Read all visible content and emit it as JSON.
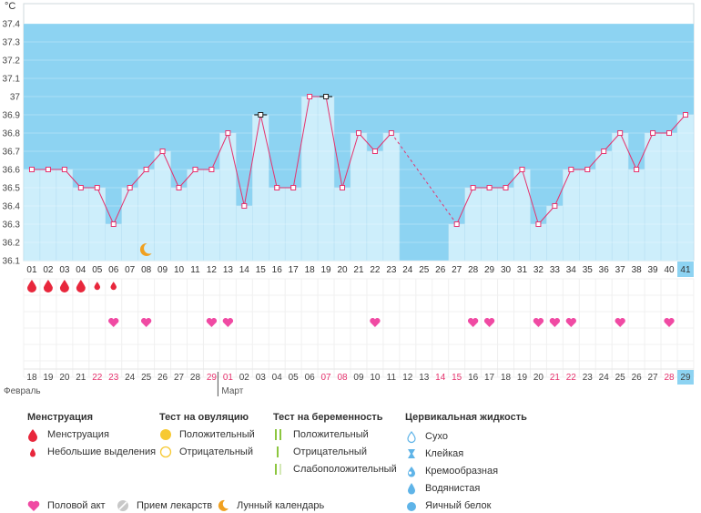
{
  "unit_label": "°C",
  "chart_data": {
    "type": "line",
    "ylim": [
      36.1,
      37.4
    ],
    "y_ticks": [
      "36.1",
      "36.2",
      "36.3",
      "36.4",
      "36.5",
      "36.6",
      "36.7",
      "36.8",
      "36.9",
      "37",
      "37.1",
      "37.2",
      "37.3",
      "37.4"
    ],
    "cycle_days": [
      "01",
      "02",
      "03",
      "04",
      "05",
      "06",
      "07",
      "08",
      "09",
      "10",
      "11",
      "12",
      "13",
      "14",
      "15",
      "16",
      "17",
      "18",
      "19",
      "20",
      "21",
      "22",
      "23",
      "24",
      "25",
      "26",
      "27",
      "28",
      "29",
      "30",
      "31",
      "32",
      "33",
      "34",
      "35",
      "36",
      "37",
      "38",
      "39",
      "40",
      "41"
    ],
    "temperatures": [
      36.6,
      36.6,
      36.6,
      36.5,
      36.5,
      36.3,
      36.5,
      36.6,
      36.7,
      36.5,
      36.6,
      36.6,
      36.8,
      36.4,
      36.9,
      36.5,
      36.5,
      37.0,
      37.0,
      36.5,
      36.8,
      36.7,
      36.8,
      null,
      null,
      null,
      36.3,
      36.5,
      36.5,
      36.5,
      36.6,
      36.3,
      36.4,
      36.6,
      36.6,
      36.7,
      36.8,
      36.6,
      36.8,
      36.8,
      36.9
    ],
    "excluded_days": [
      "15",
      "19"
    ],
    "highlighted_day": "41",
    "dates": [
      "18",
      "19",
      "20",
      "21",
      "22",
      "23",
      "24",
      "25",
      "26",
      "27",
      "28",
      "29",
      "01",
      "02",
      "03",
      "04",
      "05",
      "06",
      "07",
      "08",
      "09",
      "10",
      "11",
      "12",
      "13",
      "14",
      "15",
      "16",
      "17",
      "18",
      "19",
      "20",
      "21",
      "22",
      "23",
      "24",
      "25",
      "26",
      "27",
      "28",
      "29"
    ],
    "weekend_dates": [
      "22",
      "23",
      "29",
      "01",
      "07",
      "08",
      "14",
      "15",
      "21",
      "22",
      "28"
    ],
    "months": [
      "Февраль",
      "Март"
    ],
    "menstruation_days": [
      "01",
      "02",
      "03",
      "04"
    ],
    "light_spotting_days": [
      "05",
      "06"
    ],
    "intercourse_days": [
      "06",
      "08",
      "12",
      "13",
      "22",
      "28",
      "29",
      "32",
      "33",
      "34",
      "37",
      "40"
    ],
    "moon_days": [
      "08"
    ],
    "colors": {
      "sky": "#8dd3f2",
      "column": "#cdeefb",
      "line": "#e5336e",
      "heart": "#f04aa3",
      "drop": "#e8273c",
      "moon": "#f0a020",
      "weekend": "#e5336e",
      "today": "#8dd3f2"
    }
  },
  "legend": {
    "menstruation": {
      "title": "Менструация",
      "items": [
        "Менструация",
        "Небольшие выделения"
      ]
    },
    "ovulation_test": {
      "title": "Тест на овуляцию",
      "items": [
        "Положительный",
        "Отрицательный"
      ]
    },
    "pregnancy_test": {
      "title": "Тест на беременность",
      "items": [
        "Положительный",
        "Отрицательный",
        "Слабоположительный"
      ]
    },
    "cervical_fluid": {
      "title": "Цервикальная жидкость",
      "items": [
        "Сухо",
        "Клейкая",
        "Кремообразная",
        "Водянистая",
        "Яичный белок"
      ]
    },
    "bottom": [
      "Половой акт",
      "Прием лекарств",
      "Лунный календарь"
    ]
  }
}
